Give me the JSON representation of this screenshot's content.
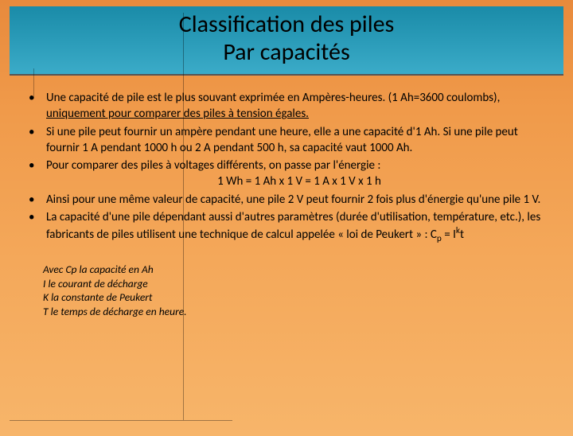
{
  "title": {
    "line1": "Classification des piles",
    "line2": "Par capacités"
  },
  "bullets": [
    {
      "pre": "Une capacité de pile est le plus souvant exprimée en Ampères-heures. (1 Ah=3600 coulombs), ",
      "underlined": "uniquement pour comparer des piles à tension égales.",
      "post": ""
    },
    {
      "text": "Si une pile peut fournir un ampère pendant une heure, elle a une capacité d'1 Ah. Si une pile peut fournir 1 A pendant 1000 h ou 2 A pendant 500 h, sa capacité vaut 1000 Ah."
    },
    {
      "text": "Pour comparer des piles à voltages différents, on passe par l'énergie :",
      "center": "1 Wh = 1 Ah x 1 V = 1 A x 1 V x 1 h"
    },
    {
      "text": "Ainsi pour une même valeur de capacité, une pile 2 V peut fournir 2 fois plus d'énergie qu'une pile 1 V."
    },
    {
      "pre": "La capacité d'une pile dépendant aussi d'autres paramètres (durée d'utilisation, température, etc.), les fabricants de piles utilisent une technique de calcul appelée « loi de Peukert » : C",
      "sub": "p",
      "mid": " = I",
      "sup": "k",
      "post": "t"
    }
  ],
  "notes": [
    "Avec Cp la capacité en Ah",
    "I le courant de décharge",
    "K la constante de Peukert",
    "T le temps de décharge en heure."
  ],
  "colors": {
    "header_gradient_top": "#1a8ba8",
    "header_gradient_bottom": "#3babc8",
    "bg_gradient_top": "#e88a3c",
    "bg_gradient_bottom": "#f7b56a",
    "text": "#000000"
  }
}
